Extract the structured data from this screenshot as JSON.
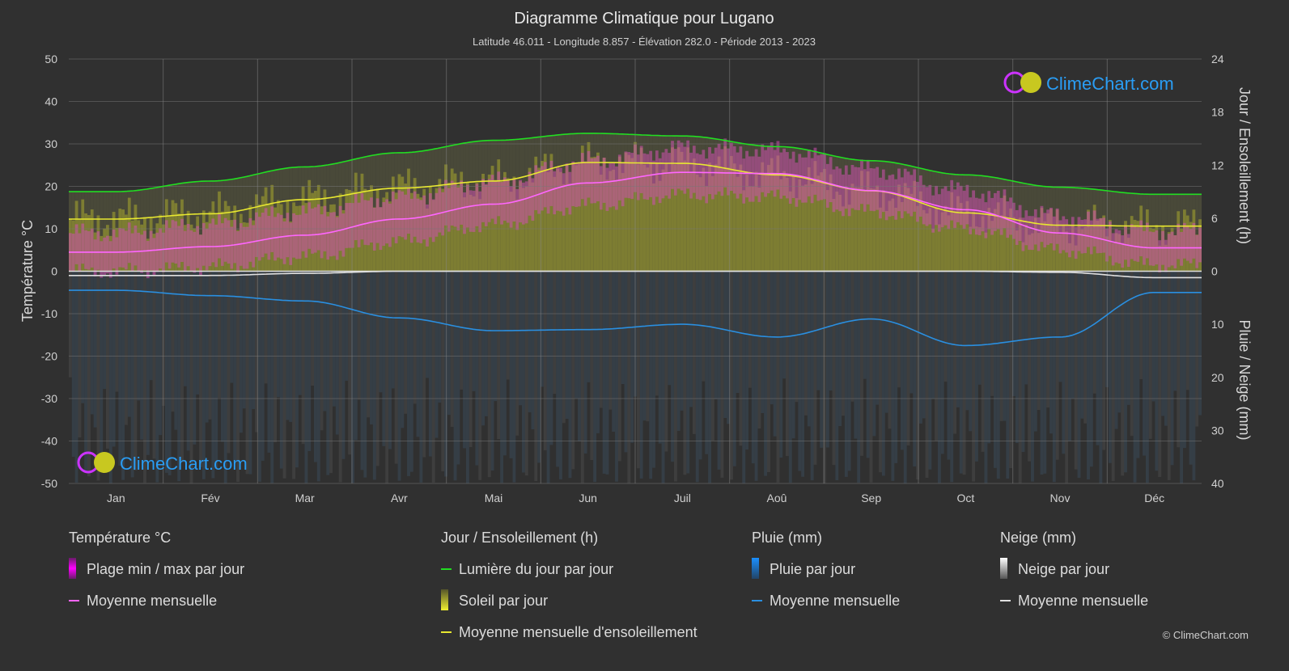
{
  "title": "Diagramme Climatique pour Lugano",
  "subtitle": "Latitude 46.011 - Longitude 8.857 - Élévation 282.0 - Période 2013 - 2023",
  "logo_text": "ClimeChart.com",
  "copyright": "© ClimeChart.com",
  "colors": {
    "background": "#303030",
    "temp_mean": "#ff66ff",
    "temp_range": "#e020e0",
    "daylight": "#22dd22",
    "sun_mean": "#e8e830",
    "sun_fill": "#9a9a30",
    "rain_mean": "#2a8fe0",
    "rain_fill": "#1f5f8f",
    "snow_mean": "#e0e0e0",
    "brand": "#2a9df4"
  },
  "chart_data": {
    "type": "line",
    "title": "Diagramme Climatique pour Lugano",
    "categories": [
      "Jan",
      "Fév",
      "Mar",
      "Avr",
      "Mai",
      "Jun",
      "Juil",
      "Aoû",
      "Sep",
      "Oct",
      "Nov",
      "Déc"
    ],
    "ylabel_left": "Température °C",
    "ylabel_right_top": "Jour / Ensoleillement (h)",
    "ylabel_right_bottom": "Pluie / Neige (mm)",
    "ylim_left": [
      -50,
      50
    ],
    "yticks_left": [
      "50",
      "40",
      "30",
      "20",
      "10",
      "0",
      "-10",
      "-20",
      "-30",
      "-40",
      "-50"
    ],
    "yticks_right_top": [
      "24",
      "18",
      "12",
      "6",
      "0"
    ],
    "yticks_right_bottom": [
      "10",
      "20",
      "30",
      "40"
    ],
    "grid": true,
    "series": [
      {
        "name": "Plage min / max par jour (min)",
        "unit": "°C",
        "values": [
          0,
          1,
          3.5,
          7,
          11,
          15.5,
          18,
          17.5,
          14,
          10,
          5,
          1.5
        ]
      },
      {
        "name": "Plage min / max par jour (max)",
        "unit": "°C",
        "values": [
          9,
          11,
          14,
          17.5,
          21,
          26,
          29,
          28.5,
          24,
          19,
          13,
          9.5
        ]
      },
      {
        "name": "Température moyenne mensuelle",
        "unit": "°C",
        "values": [
          4.5,
          5.8,
          8.5,
          12.3,
          15.8,
          20.8,
          23.3,
          23.0,
          19.0,
          14.5,
          9.0,
          5.5
        ]
      },
      {
        "name": "Lumière du jour par jour",
        "unit": "h",
        "values": [
          9.0,
          10.2,
          11.8,
          13.4,
          14.8,
          15.6,
          15.3,
          14.1,
          12.5,
          10.9,
          9.5,
          8.7
        ]
      },
      {
        "name": "Moyenne mensuelle d'ensoleillement",
        "unit": "h",
        "values": [
          5.9,
          6.5,
          8.1,
          9.4,
          10.2,
          12.3,
          12.2,
          10.9,
          9.1,
          6.6,
          5.2,
          5.1
        ]
      },
      {
        "name": "Pluie moyenne mensuelle",
        "unit": "mm",
        "values": [
          3.6,
          4.6,
          5.6,
          8.8,
          11.2,
          11.0,
          10.0,
          12.4,
          9.0,
          14.0,
          12.4,
          4.0
        ]
      },
      {
        "name": "Neige moyenne mensuelle",
        "unit": "mm",
        "values": [
          0.8,
          0.8,
          0.4,
          0,
          0,
          0,
          0,
          0,
          0,
          0,
          0.2,
          1.2
        ]
      }
    ]
  },
  "legend": {
    "temp": {
      "title": "Température °C",
      "items": [
        "Plage min / max par jour",
        "Moyenne mensuelle"
      ]
    },
    "sun": {
      "title": "Jour / Ensoleillement (h)",
      "items": [
        "Lumière du jour par jour",
        "Soleil par jour",
        "Moyenne mensuelle d'ensoleillement"
      ]
    },
    "rain": {
      "title": "Pluie (mm)",
      "items": [
        "Pluie par jour",
        "Moyenne mensuelle"
      ]
    },
    "snow": {
      "title": "Neige (mm)",
      "items": [
        "Neige par jour",
        "Moyenne mensuelle"
      ]
    }
  }
}
